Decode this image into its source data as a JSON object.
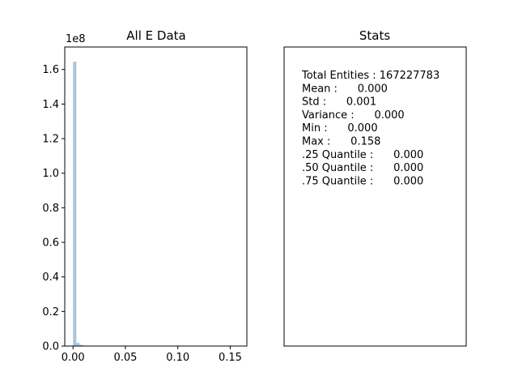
{
  "chart_data": [
    {
      "type": "bar",
      "title": "All E Data",
      "xlabel": "",
      "ylabel": "",
      "y_offset_label": "1e8",
      "xlim": [
        -0.0079,
        0.1659
      ],
      "ylim": [
        0,
        1.73
      ],
      "xticks": [
        0.0,
        0.05,
        0.1,
        0.15
      ],
      "xtick_labels": [
        "0.00",
        "0.05",
        "0.10",
        "0.15"
      ],
      "yticks": [
        0.0,
        0.2,
        0.4,
        0.6,
        0.8,
        1.0,
        1.2,
        1.4,
        1.6
      ],
      "ytick_labels": [
        "0.0",
        "0.2",
        "0.4",
        "0.6",
        "0.8",
        "1.0",
        "1.2",
        "1.4",
        "1.6"
      ],
      "bar_color": "#a6c6df",
      "bins": [
        {
          "x0": 0.0,
          "x1": 0.00316,
          "value": 1.645
        },
        {
          "x0": 0.00316,
          "x1": 0.00632,
          "value": 0.018
        },
        {
          "x0": 0.00632,
          "x1": 0.00948,
          "value": 0.007
        },
        {
          "x0": 0.00948,
          "x1": 0.01264,
          "value": 0.002
        }
      ]
    },
    {
      "type": "table",
      "title": "Stats",
      "lines": [
        "Total Entities : 167227783",
        "Mean :      0.000",
        "Std :      0.001",
        "Variance :      0.000",
        "Min :      0.000",
        "Max :      0.158",
        ".25 Quantile :      0.000",
        ".50 Quantile :      0.000",
        ".75 Quantile :      0.000"
      ]
    }
  ]
}
